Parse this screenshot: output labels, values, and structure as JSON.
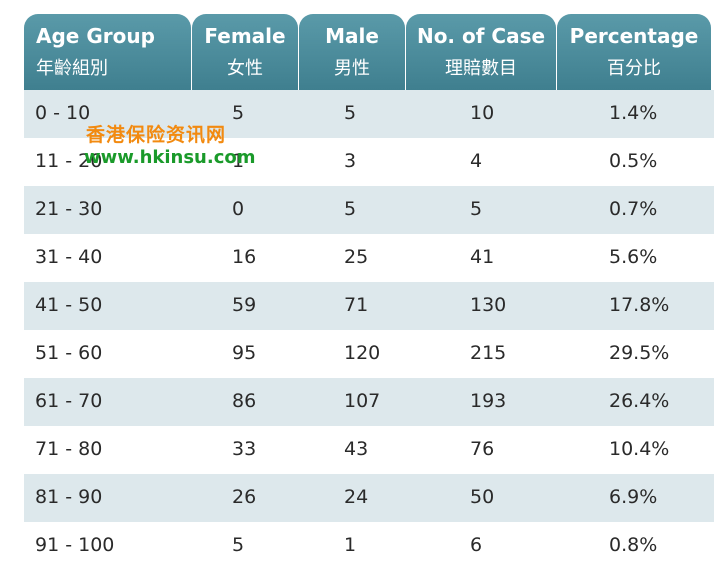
{
  "headers": [
    {
      "en": "Age Group",
      "zh": "年齡組別"
    },
    {
      "en": "Female",
      "zh": "女性"
    },
    {
      "en": "Male",
      "zh": "男性"
    },
    {
      "en": "No. of Case",
      "zh": "理賠數目"
    },
    {
      "en": "Percentage",
      "zh": "百分比"
    }
  ],
  "rows": [
    {
      "age": "0 - 10",
      "female": "5",
      "male": "5",
      "cases": "10",
      "pct": "1.4%"
    },
    {
      "age": "11 - 20",
      "female": "1",
      "male": "3",
      "cases": "4",
      "pct": "0.5%"
    },
    {
      "age": "21 - 30",
      "female": "0",
      "male": "5",
      "cases": "5",
      "pct": "0.7%"
    },
    {
      "age": "31 - 40",
      "female": "16",
      "male": "25",
      "cases": "41",
      "pct": "5.6%"
    },
    {
      "age": "41 - 50",
      "female": "59",
      "male": "71",
      "cases": "130",
      "pct": "17.8%"
    },
    {
      "age": "51 - 60",
      "female": "95",
      "male": "120",
      "cases": "215",
      "pct": "29.5%"
    },
    {
      "age": "61 - 70",
      "female": "86",
      "male": "107",
      "cases": "193",
      "pct": "26.4%"
    },
    {
      "age": "71 - 80",
      "female": "33",
      "male": "43",
      "cases": "76",
      "pct": "10.4%"
    },
    {
      "age": "81 - 90",
      "female": "26",
      "male": "24",
      "cases": "50",
      "pct": "6.9%"
    },
    {
      "age": "91 - 100",
      "female": "5",
      "male": "1",
      "cases": "6",
      "pct": "0.8%"
    }
  ],
  "watermark": {
    "zh": "香港保险资讯网",
    "en": "www.hkinsu.com"
  },
  "colors": {
    "header": "#4a8c9c",
    "stripe": "#dde8ec",
    "watermark_zh": "#f28a10",
    "watermark_en": "#1a9a2a"
  }
}
